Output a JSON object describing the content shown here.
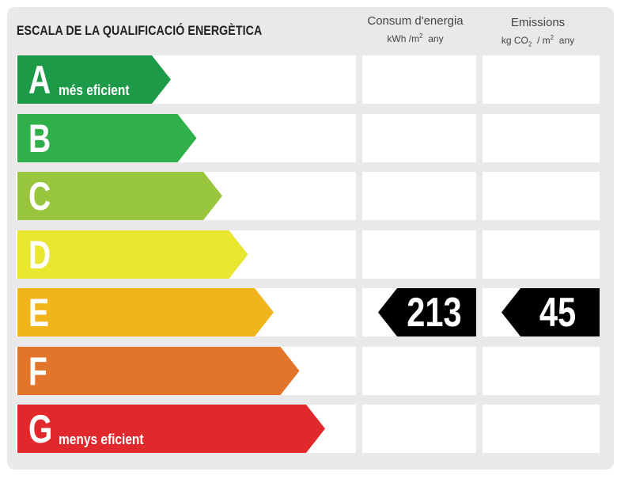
{
  "title": "ESCALA DE LA QUALIFICACIÓ ENERGÈTICA",
  "columns": {
    "consumption": {
      "title": "Consum d'energia",
      "unit_pre": "kWh /m",
      "unit_exp": "2",
      "unit_post": "any"
    },
    "emissions": {
      "title": "Emissions",
      "unit_kg": "kg CO",
      "unit_sub": "2",
      "unit_mid": "/ m",
      "unit_exp": "2",
      "unit_post": "any"
    }
  },
  "classes": [
    {
      "letter": "A",
      "caption": "més eficient",
      "color": "#1d9a48"
    },
    {
      "letter": "B",
      "caption": "",
      "color": "#2fb04b"
    },
    {
      "letter": "C",
      "caption": "",
      "color": "#98c63c"
    },
    {
      "letter": "D",
      "caption": "",
      "color": "#e9e630"
    },
    {
      "letter": "E",
      "caption": "",
      "color": "#f1b51c"
    },
    {
      "letter": "F",
      "caption": "",
      "color": "#e2752a"
    },
    {
      "letter": "G",
      "caption": "menys eficient",
      "color": "#e1282d"
    }
  ],
  "rating": {
    "class": "E",
    "consumption": "213",
    "emissions": "45"
  }
}
